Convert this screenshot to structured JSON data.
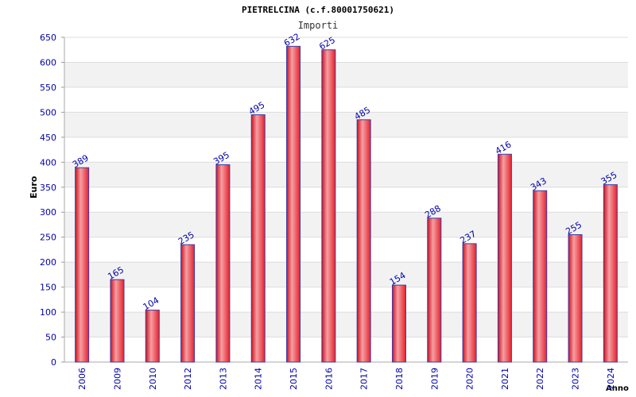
{
  "chart_data": {
    "type": "bar",
    "title": "PIETRELCINA (c.f.80001750621)",
    "subtitle": "Importi",
    "xlabel": "Anno",
    "ylabel": "Euro",
    "ylim": [
      0,
      650
    ],
    "yticks": [
      0,
      50,
      100,
      150,
      200,
      250,
      300,
      350,
      400,
      450,
      500,
      550,
      600,
      650
    ],
    "categories": [
      "2006",
      "2009",
      "2010",
      "2012",
      "2013",
      "2014",
      "2015",
      "2016",
      "2017",
      "2018",
      "2019",
      "2020",
      "2021",
      "2022",
      "2023",
      "2024"
    ],
    "values": [
      389,
      165,
      104,
      235,
      395,
      495,
      632,
      625,
      485,
      154,
      288,
      237,
      416,
      343,
      255,
      355
    ],
    "grid": true,
    "colors": {
      "bar_main": "#e8202a",
      "bar_highlight": "#f4a0a4",
      "bar_edge": "#3b3ba8",
      "tick_text": "#0000aa",
      "band": "#f2f2f2",
      "gridline": "#dddddd"
    }
  }
}
